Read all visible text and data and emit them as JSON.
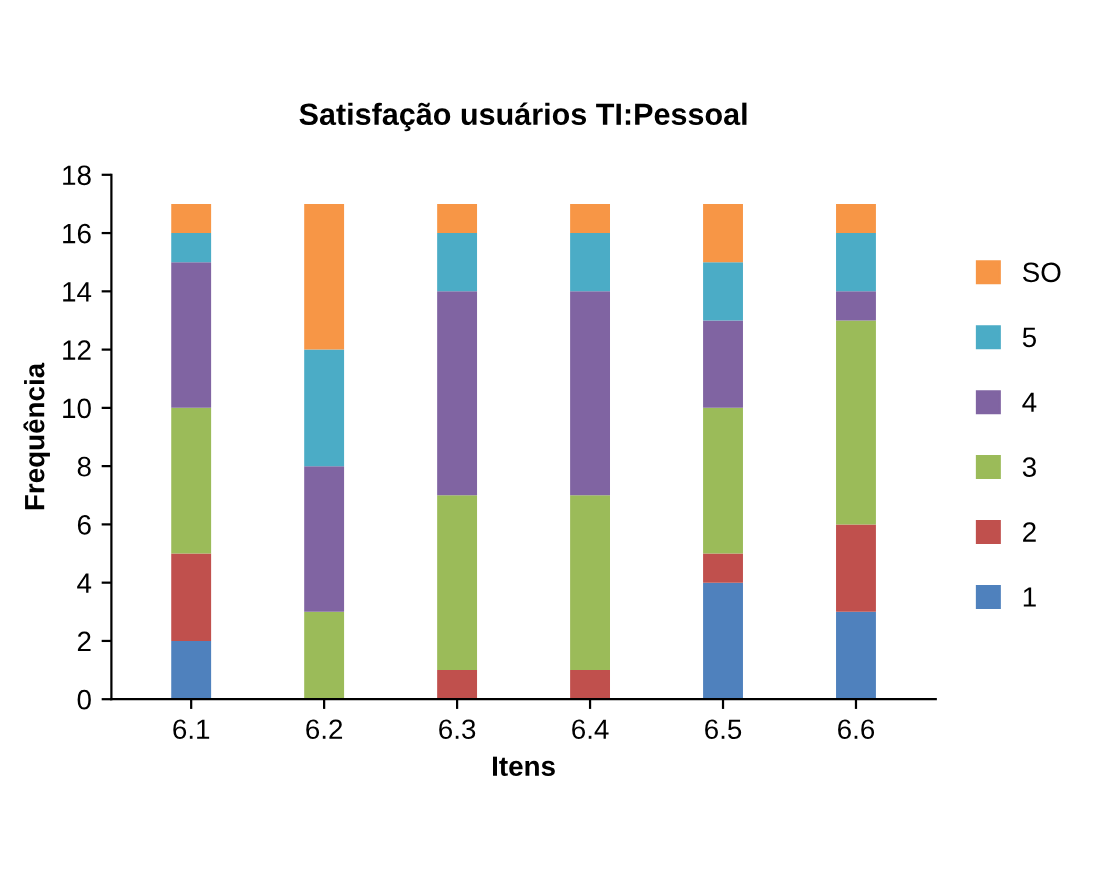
{
  "chart_data": {
    "type": "bar",
    "title": "Satisfação usuários TI:Pessoal",
    "xlabel": "Itens",
    "ylabel": "Frequência",
    "stacked": true,
    "categories": [
      "6.1",
      "6.2",
      "6.3",
      "6.4",
      "6.5",
      "6.6"
    ],
    "series": [
      {
        "name": "1",
        "color": "#4f81bd",
        "values": [
          2,
          0,
          0,
          0,
          4,
          3
        ]
      },
      {
        "name": "2",
        "color": "#c0504d",
        "values": [
          3,
          0,
          1,
          1,
          1,
          3
        ]
      },
      {
        "name": "3",
        "color": "#9bbb59",
        "values": [
          5,
          3,
          6,
          6,
          5,
          7
        ]
      },
      {
        "name": "4",
        "color": "#8064a2",
        "values": [
          5,
          5,
          7,
          7,
          3,
          1
        ]
      },
      {
        "name": "5",
        "color": "#4bacc6",
        "values": [
          1,
          4,
          2,
          2,
          2,
          2
        ]
      },
      {
        "name": "SO",
        "color": "#f79646",
        "values": [
          1,
          5,
          1,
          1,
          2,
          1
        ]
      }
    ],
    "ylim": [
      0,
      18
    ],
    "yticks": [
      0,
      2,
      4,
      6,
      8,
      10,
      12,
      14,
      16,
      18
    ],
    "grid": false,
    "legend": "right"
  }
}
